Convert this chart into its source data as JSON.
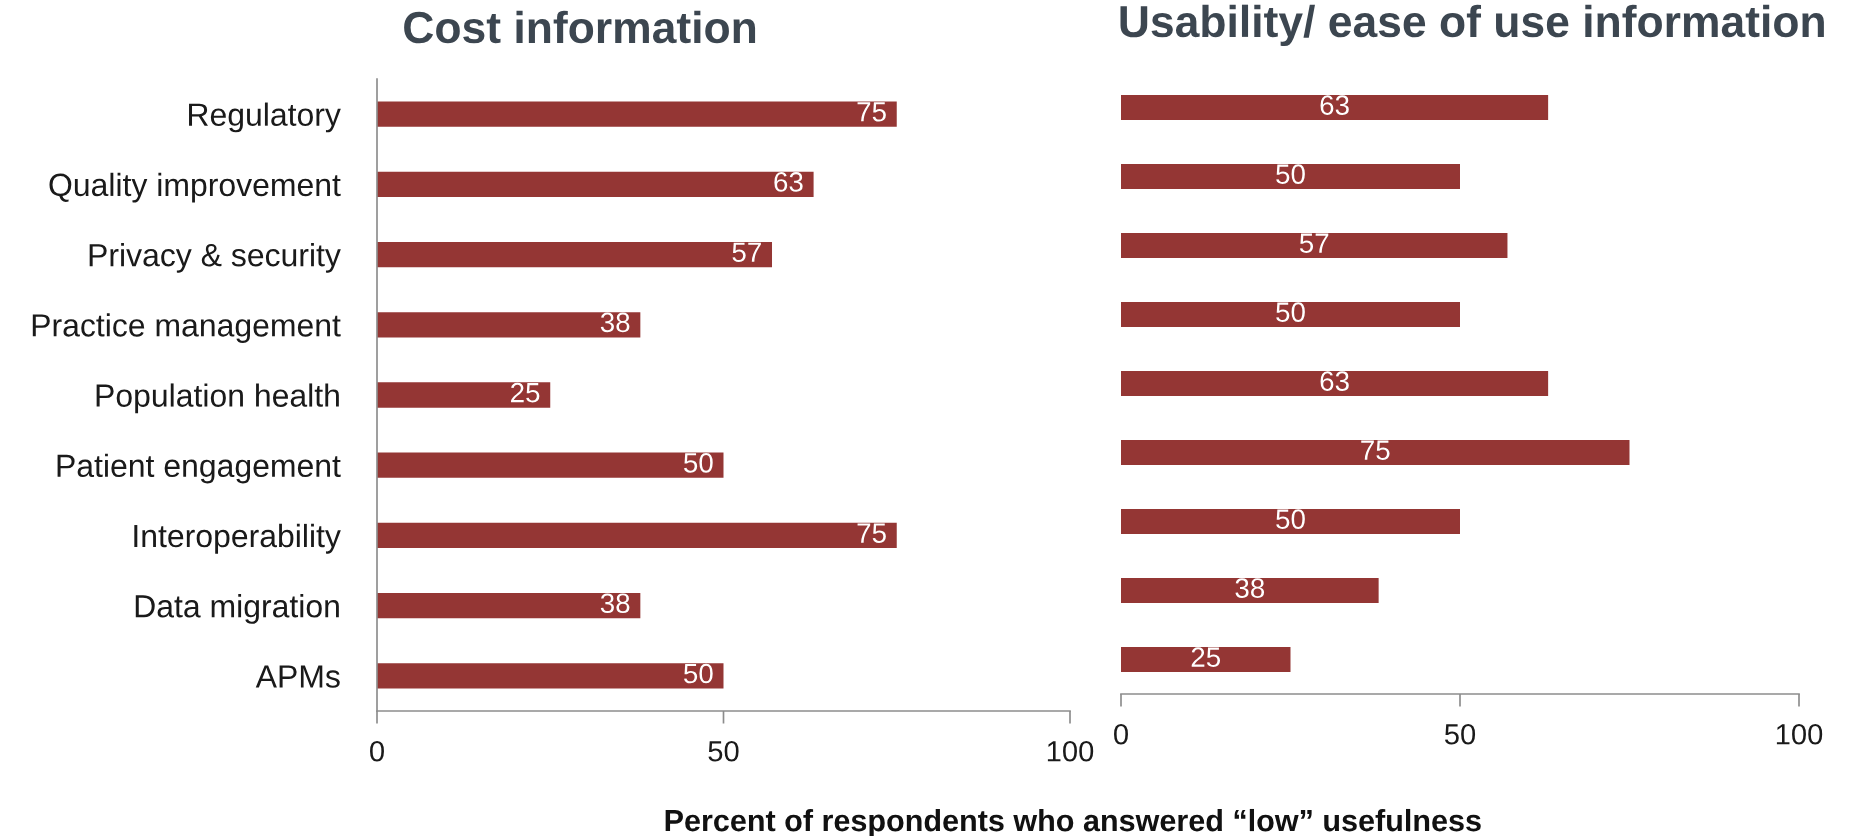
{
  "chart_data": [
    {
      "type": "bar",
      "orientation": "horizontal",
      "title": "Cost information",
      "xlabel": "Percent of respondents who answered “low” usefulness",
      "categories": [
        "Regulatory",
        "Quality improvement",
        "Privacy & security",
        "Practice management",
        "Population health",
        "Patient engagement",
        "Interoperability",
        "Data migration",
        "APMs"
      ],
      "values": [
        75,
        63,
        57,
        38,
        25,
        50,
        75,
        38,
        50
      ],
      "color": "#943634",
      "xlim": [
        0,
        100
      ],
      "xticks": [
        0,
        50,
        100
      ],
      "data_labels": true
    },
    {
      "type": "bar",
      "orientation": "horizontal",
      "title": "Usability/ ease of use information",
      "categories": [
        null,
        null,
        null,
        null,
        null,
        null,
        null,
        null,
        null
      ],
      "values": [
        63,
        50,
        57,
        50,
        63,
        75,
        50,
        38,
        25
      ],
      "color": "#943634",
      "xlim": [
        0,
        100
      ],
      "xticks": [
        0,
        50,
        100
      ],
      "data_labels": true,
      "tick_labels": "x"
    }
  ]
}
